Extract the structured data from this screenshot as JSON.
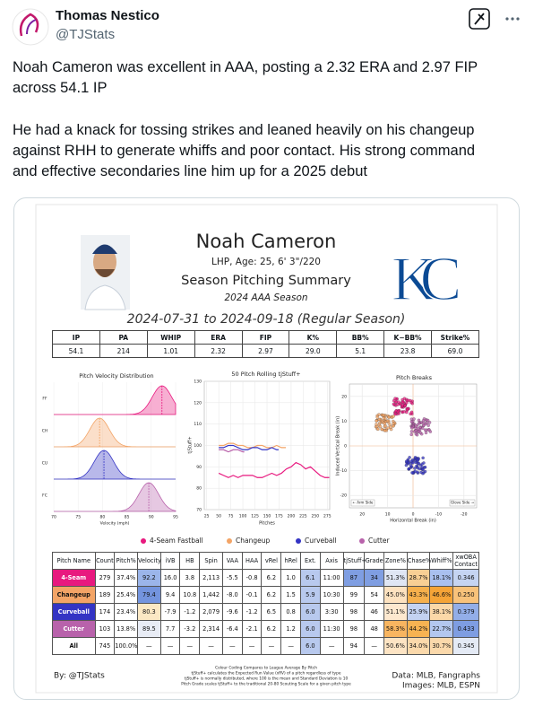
{
  "tweet": {
    "author": "Thomas Nestico",
    "handle": "@TJStats",
    "paragraphs": [
      [
        "Noah Cameron was excellent in AAA, posting a 2.32 ERA and 2.97 FIP",
        "across 54.1 IP"
      ],
      [
        "He had a knack for tossing strikes and leaned heavily on his changeup",
        "against RHH to generate whiffs and poor contact. His strong command",
        "and effective secondaries line him up for a 2025 debut"
      ]
    ]
  },
  "graphic": {
    "player": "Noah Cameron",
    "bio": "LHP, Age: 25, 6' 3\"/220",
    "title": "Season Pitching Summary",
    "season": "2024 AAA Season",
    "team_logo": [
      "K",
      "C"
    ],
    "date_range": "2024-07-31 to 2024-09-18 (Regular Season)",
    "stats": {
      "headers": [
        "IP",
        "PA",
        "WHIP",
        "ERA",
        "FIP",
        "K%",
        "BB%",
        "K−BB%",
        "Strike%"
      ],
      "values": [
        "54.1",
        "214",
        "1.01",
        "2.32",
        "2.97",
        "29.0",
        "5.1",
        "23.8",
        "69.0"
      ]
    },
    "velocity_chart": {
      "title": "Pitch Velocity Distribution",
      "pitch_labels": [
        "FF",
        "CH",
        "CU",
        "FC"
      ],
      "xlim": [
        70,
        95
      ],
      "xticks": [
        70,
        75,
        80,
        85,
        90,
        95
      ],
      "xlabel": "Velocity (mph)"
    },
    "rolling_chart": {
      "title": "50 Pitch Rolling tjStuff+",
      "xlabel": "Pitches",
      "ylabel": "tjStuff+",
      "xlim": [
        20,
        280
      ],
      "ylim": [
        70,
        130
      ],
      "xticks": [
        25,
        50,
        75,
        100,
        125,
        150,
        175,
        200,
        225,
        250,
        275
      ],
      "yticks": [
        70,
        80,
        90,
        100,
        110,
        120,
        130
      ],
      "series": [
        {
          "x": [
            50,
            60,
            70,
            80,
            90,
            100,
            110,
            120,
            130,
            140,
            150,
            160,
            170,
            180,
            190,
            200,
            210,
            220,
            230,
            240,
            250,
            260,
            270,
            279
          ],
          "values": [
            87,
            86,
            85,
            86,
            85,
            86,
            86,
            86,
            85,
            85,
            86,
            87,
            86,
            87,
            89,
            90,
            92,
            91,
            89,
            90,
            88,
            86,
            85,
            85
          ]
        },
        {
          "x": [
            50,
            60,
            70,
            80,
            90,
            100,
            110,
            120,
            130,
            140,
            150,
            160,
            170,
            180,
            189
          ],
          "values": [
            100,
            100,
            101,
            101,
            100,
            100,
            99,
            99,
            100,
            100,
            99,
            99,
            100,
            99,
            99
          ]
        },
        {
          "x": [
            50,
            60,
            70,
            80,
            90,
            100,
            110,
            120,
            130,
            140,
            150,
            160,
            170,
            174
          ],
          "values": [
            99,
            99,
            100,
            100,
            99,
            98,
            98,
            99,
            99,
            98,
            98,
            99,
            98,
            98
          ]
        },
        {
          "x": [
            50,
            60,
            70,
            80,
            90,
            100,
            103
          ],
          "values": [
            98,
            98,
            97,
            98,
            98,
            97,
            97
          ]
        }
      ]
    },
    "breaks_chart": {
      "title": "Pitch Breaks",
      "xlabel": "Horizontal Break (in)",
      "ylabel": "Induced Vertical Break (in)",
      "arm_side": "← Arm Side",
      "glove_side": "Glove Side →",
      "xlim": [
        25,
        -25
      ],
      "ylim": [
        -25,
        25
      ],
      "xticks": [
        20,
        10,
        0,
        -10,
        -20
      ],
      "yticks": [
        -20,
        -10,
        0,
        10,
        20
      ]
    },
    "legend": [
      {
        "name": "4-Seam Fastball",
        "color": "#e8197f"
      },
      {
        "name": "Changeup",
        "color": "#f3a466"
      },
      {
        "name": "Curveball",
        "color": "#3434c4"
      },
      {
        "name": "Cutter",
        "color": "#b862ab"
      }
    ],
    "pitch_table": {
      "headers": [
        "Pitch Name",
        "Count",
        "Pitch%",
        "Velocity",
        "iVB",
        "HB",
        "Spin",
        "VAA",
        "HAA",
        "vRel",
        "hRel",
        "Ext.",
        "Axis",
        "tjStuff+",
        "Grade",
        "Zone%",
        "Chase%",
        "Whiff%",
        "xwOBA Contact"
      ],
      "rows": [
        [
          "4-Seam",
          "279",
          "37.4%",
          "92.2",
          "16.0",
          "3.8",
          "2,113",
          "-5.5",
          "-0.8",
          "6.2",
          "1.0",
          "6.1",
          "11:00",
          "87",
          "34",
          "51.3%",
          "28.7%",
          "18.1%",
          "0.346"
        ],
        [
          "Changeup",
          "189",
          "25.4%",
          "79.4",
          "9.4",
          "10.8",
          "1,442",
          "-8.0",
          "-0.1",
          "6.2",
          "1.5",
          "5.9",
          "10:30",
          "99",
          "54",
          "45.0%",
          "43.3%",
          "46.6%",
          "0.250"
        ],
        [
          "Curveball",
          "174",
          "23.4%",
          "80.3",
          "-7.9",
          "-1.2",
          "2,079",
          "-9.6",
          "-1.2",
          "6.5",
          "0.8",
          "6.0",
          "3:30",
          "98",
          "46",
          "51.1%",
          "25.9%",
          "38.1%",
          "0.379"
        ],
        [
          "Cutter",
          "103",
          "13.8%",
          "89.5",
          "7.7",
          "-3.2",
          "2,314",
          "-6.4",
          "-2.1",
          "6.2",
          "1.2",
          "6.0",
          "11:30",
          "98",
          "48",
          "58.3%",
          "44.2%",
          "22.7%",
          "0.433"
        ],
        [
          "All",
          "745",
          "100.0%",
          "—",
          "—",
          "—",
          "—",
          "—",
          "—",
          "—",
          "—",
          "6.0",
          "—",
          "94",
          "—",
          "50.6%",
          "34.0%",
          "30.7%",
          "0.345"
        ]
      ],
      "cell_colors": [
        [
          null,
          null,
          null,
          "#9bb5ea",
          null,
          null,
          null,
          null,
          null,
          null,
          null,
          "#b8c9ee",
          null,
          "#7f9ee2",
          "#7f9ee2",
          "#dfe6f4",
          "#f8cf94",
          "#a9c0ef",
          "#c5d4f2"
        ],
        [
          null,
          null,
          null,
          "#7394de",
          null,
          null,
          null,
          null,
          null,
          null,
          null,
          "#b8c9ee",
          null,
          null,
          null,
          "#fde2c0",
          "#f6b04c",
          "#f5a437",
          "#f8c27a"
        ],
        [
          null,
          null,
          null,
          "#fbe8c4",
          null,
          null,
          null,
          null,
          null,
          null,
          null,
          "#b8c9ee",
          null,
          null,
          null,
          "#fde8cf",
          "#c3d2f1",
          "#fbd8a8",
          "#93aee8"
        ],
        [
          null,
          null,
          null,
          "#e8ecf5",
          null,
          null,
          null,
          null,
          null,
          null,
          null,
          "#b8c9ee",
          null,
          null,
          null,
          "#f8b560",
          "#f7b352",
          "#b3c7ef",
          "#7e9de2"
        ],
        [
          null,
          null,
          null,
          null,
          null,
          null,
          null,
          null,
          null,
          null,
          null,
          "#b8c9ee",
          null,
          null,
          null,
          "#fde4c4",
          "#fbd9ab",
          "#fbd9ab",
          "#e4eaf5"
        ]
      ]
    },
    "footer": {
      "byline": "By: @TJStats",
      "notes": [
        "Colour Coding Compares to League Average By Pitch",
        "tjStuff+ calculates the Expected Run Value (xRV) of a pitch regardless of type",
        "tjStuff+ is normally distributed, where 100 is the mean and Standard Deviation is 10",
        "Pitch Grade scales tjStuff+ to the traditional 20-80 Scouting Scale for a given pitch type"
      ],
      "sources": [
        "Data: MLB, Fangraphs",
        "Images: MLB, ESPN"
      ]
    }
  }
}
